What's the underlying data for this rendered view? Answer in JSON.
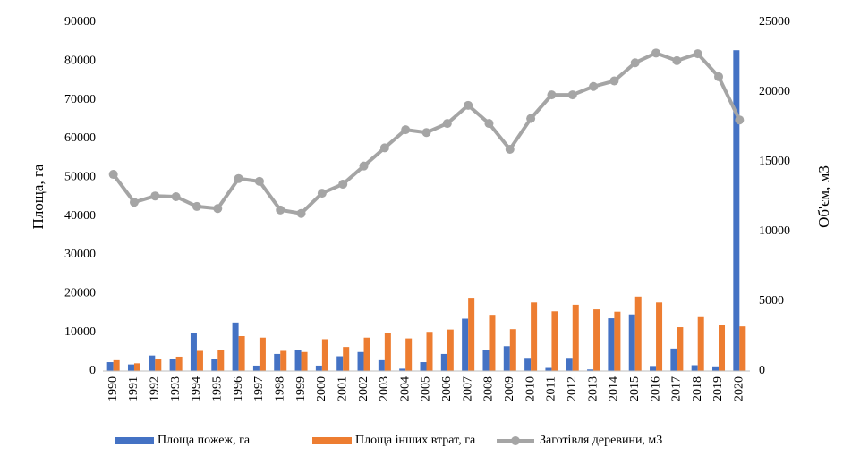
{
  "chart_data": {
    "type": "bar_line",
    "y_label": "Площа, га",
    "y2_label": "Об'єм, м3",
    "categories": [
      "1990",
      "1991",
      "1992",
      "1993",
      "1994",
      "1995",
      "1996",
      "1997",
      "1998",
      "1999",
      "2000",
      "2001",
      "2002",
      "2003",
      "2004",
      "2005",
      "2006",
      "2007",
      "2008",
      "2009",
      "2010",
      "2011",
      "2012",
      "2013",
      "2014",
      "2015",
      "2016",
      "2017",
      "2018",
      "2019",
      "2020"
    ],
    "series": [
      {
        "name": "Площа пожеж, га",
        "color": "#4472c4",
        "type": "bar",
        "values": [
          2300,
          1700,
          4000,
          3000,
          9800,
          3100,
          12500,
          1400,
          4400,
          5500,
          1400,
          3800,
          4900,
          2800,
          600,
          2300,
          4400,
          13500,
          5500,
          6400,
          3400,
          800,
          3400,
          400,
          13600,
          14600,
          1300,
          5800,
          1500,
          1200,
          82800
        ]
      },
      {
        "name": "Площа інших втрат, га",
        "color": "#ed7d31",
        "type": "bar",
        "values": [
          2800,
          2000,
          3000,
          3700,
          5200,
          5500,
          9000,
          8600,
          5200,
          4900,
          8200,
          6200,
          8600,
          9900,
          8400,
          10100,
          10700,
          18900,
          14500,
          10800,
          17700,
          15400,
          17100,
          15900,
          15300,
          19200,
          17700,
          11300,
          13900,
          11900,
          11500
        ]
      },
      {
        "name": "Заготівля деревини, м3",
        "color": "#a5a5a5",
        "type": "line",
        "axis": "y2",
        "values": [
          14100,
          12100,
          12550,
          12500,
          11800,
          11650,
          13800,
          13600,
          11550,
          11300,
          12750,
          13400,
          14700,
          16000,
          17300,
          17100,
          17750,
          19050,
          17750,
          15900,
          18100,
          19800,
          19800,
          20400,
          20800,
          22100,
          22800,
          22250,
          22750,
          21100,
          18000
        ]
      }
    ],
    "ylim": [
      0,
      90000
    ],
    "yticks": [
      0,
      10000,
      20000,
      30000,
      40000,
      50000,
      60000,
      70000,
      80000,
      90000
    ],
    "y2lim": [
      0,
      25000
    ],
    "y2ticks": [
      0,
      5000,
      10000,
      15000,
      20000,
      25000
    ],
    "grid": false,
    "legend": "bottom"
  }
}
